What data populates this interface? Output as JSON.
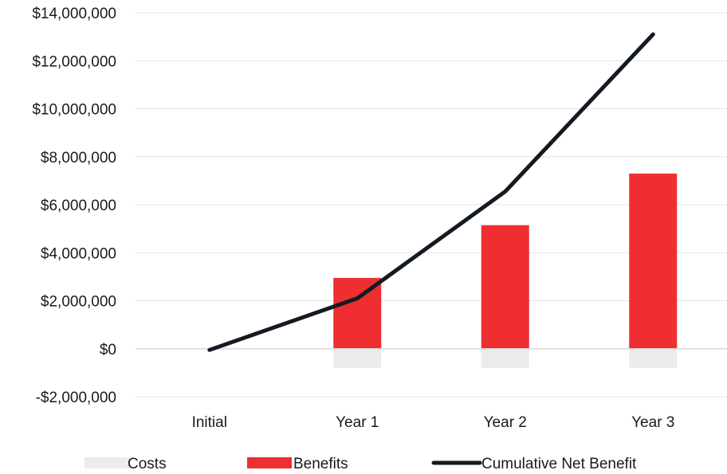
{
  "chart_data": {
    "type": "bar",
    "categories": [
      "Initial",
      "Year 1",
      "Year 2",
      "Year 3"
    ],
    "series": [
      {
        "name": "Costs",
        "type": "bar",
        "color": "#ececec",
        "values": [
          0,
          -800000,
          -800000,
          -800000
        ]
      },
      {
        "name": "Benefits",
        "type": "bar",
        "color": "#ee2e31",
        "values": [
          0,
          2950000,
          5150000,
          7300000
        ]
      },
      {
        "name": "Cumulative Net Benefit",
        "type": "line",
        "color": "#141a22",
        "values": [
          -50000,
          2100000,
          6550000,
          13100000
        ]
      }
    ],
    "y_ticks": [
      {
        "value": 14000000,
        "label": "$14,000,000"
      },
      {
        "value": 12000000,
        "label": "$12,000,000"
      },
      {
        "value": 10000000,
        "label": "$10,000,000"
      },
      {
        "value": 8000000,
        "label": "$8,000,000"
      },
      {
        "value": 6000000,
        "label": "$6,000,000"
      },
      {
        "value": 4000000,
        "label": "$4,000,000"
      },
      {
        "value": 2000000,
        "label": "$2,000,000"
      },
      {
        "value": 0,
        "label": "$0"
      },
      {
        "value": -2000000,
        "label": "-$2,000,000"
      }
    ],
    "ylim": [
      -2000000,
      14000000
    ],
    "grid": true,
    "legend_position": "bottom",
    "title": "",
    "xlabel": "",
    "ylabel": ""
  }
}
